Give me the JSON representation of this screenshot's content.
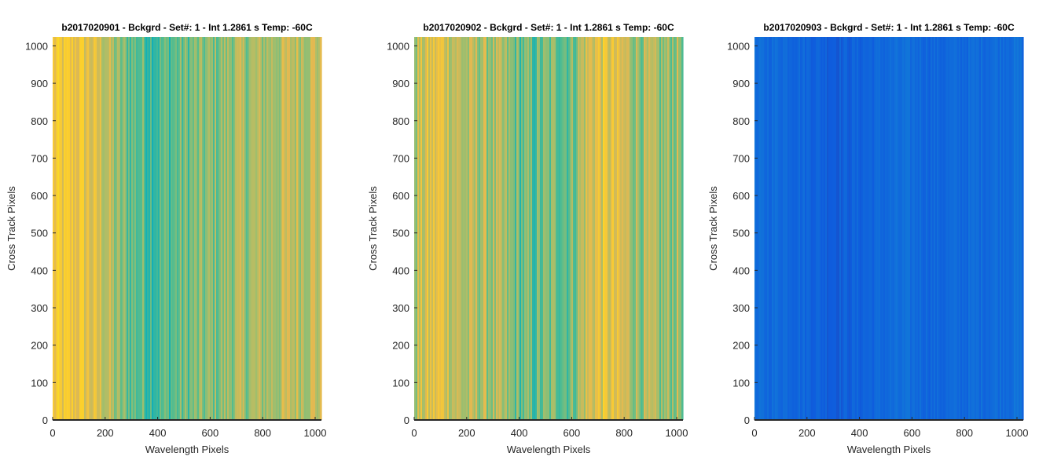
{
  "figure": {
    "background": "#ffffff"
  },
  "chart_data": [
    {
      "type": "heatmap",
      "title": "b2017020901 - Bckgrd - Set#: 1 - Int 1.2861 s Temp: -60C",
      "xlabel": "Wavelength Pixels",
      "ylabel": "Cross Track Pixels",
      "xlim": [
        0,
        1024
      ],
      "ylim": [
        0,
        1024
      ],
      "xticks": [
        0,
        200,
        400,
        600,
        800,
        1000
      ],
      "yticks": [
        0,
        100,
        200,
        300,
        400,
        500,
        600,
        700,
        800,
        900,
        1000
      ],
      "grid": false,
      "colormap": "parula",
      "column_profile": {
        "x": [
          0,
          50,
          100,
          150,
          200,
          250,
          300,
          350,
          400,
          450,
          500,
          550,
          600,
          650,
          700,
          750,
          800,
          850,
          900,
          950,
          1000,
          1024
        ],
        "level": [
          0.75,
          0.74,
          0.75,
          0.7,
          0.66,
          0.55,
          0.52,
          0.5,
          0.48,
          0.5,
          0.52,
          0.54,
          0.55,
          0.57,
          0.6,
          0.59,
          0.6,
          0.62,
          0.64,
          0.65,
          0.66,
          0.62
        ]
      },
      "noise_amplitude": 0.1
    },
    {
      "type": "heatmap",
      "title": "b2017020902 - Bckgrd - Set#: 1 - Int 1.2861 s Temp: -60C",
      "xlabel": "Wavelength Pixels",
      "ylabel": "Cross Track Pixels",
      "xlim": [
        0,
        1024
      ],
      "ylim": [
        0,
        1024
      ],
      "xticks": [
        0,
        200,
        400,
        600,
        800,
        1000
      ],
      "yticks": [
        0,
        100,
        200,
        300,
        400,
        500,
        600,
        700,
        800,
        900,
        1000
      ],
      "grid": false,
      "colormap": "parula",
      "column_profile": {
        "x": [
          0,
          50,
          100,
          150,
          200,
          250,
          300,
          350,
          400,
          450,
          500,
          550,
          600,
          650,
          700,
          750,
          800,
          850,
          900,
          950,
          1000,
          1024
        ],
        "level": [
          0.62,
          0.68,
          0.73,
          0.66,
          0.6,
          0.62,
          0.6,
          0.56,
          0.52,
          0.5,
          0.52,
          0.55,
          0.53,
          0.66,
          0.72,
          0.7,
          0.66,
          0.6,
          0.58,
          0.56,
          0.6,
          0.58
        ]
      },
      "noise_amplitude": 0.11
    },
    {
      "type": "heatmap",
      "title": "b2017020903 - Bckgrd - Set#: 1 - Int 1.2861 s Temp: -60C",
      "xlabel": "Wavelength Pixels",
      "ylabel": "Cross Track Pixels",
      "xlim": [
        0,
        1024
      ],
      "ylim": [
        0,
        1024
      ],
      "xticks": [
        0,
        200,
        400,
        600,
        800,
        1000
      ],
      "yticks": [
        0,
        100,
        200,
        300,
        400,
        500,
        600,
        700,
        800,
        900,
        1000
      ],
      "grid": false,
      "colormap": "parula",
      "column_profile": {
        "x": [
          0,
          100,
          200,
          300,
          400,
          500,
          600,
          700,
          800,
          900,
          1000,
          1024
        ],
        "level": [
          0.14,
          0.15,
          0.13,
          0.11,
          0.12,
          0.14,
          0.15,
          0.13,
          0.14,
          0.15,
          0.16,
          0.15
        ]
      },
      "noise_amplitude": 0.03
    }
  ]
}
